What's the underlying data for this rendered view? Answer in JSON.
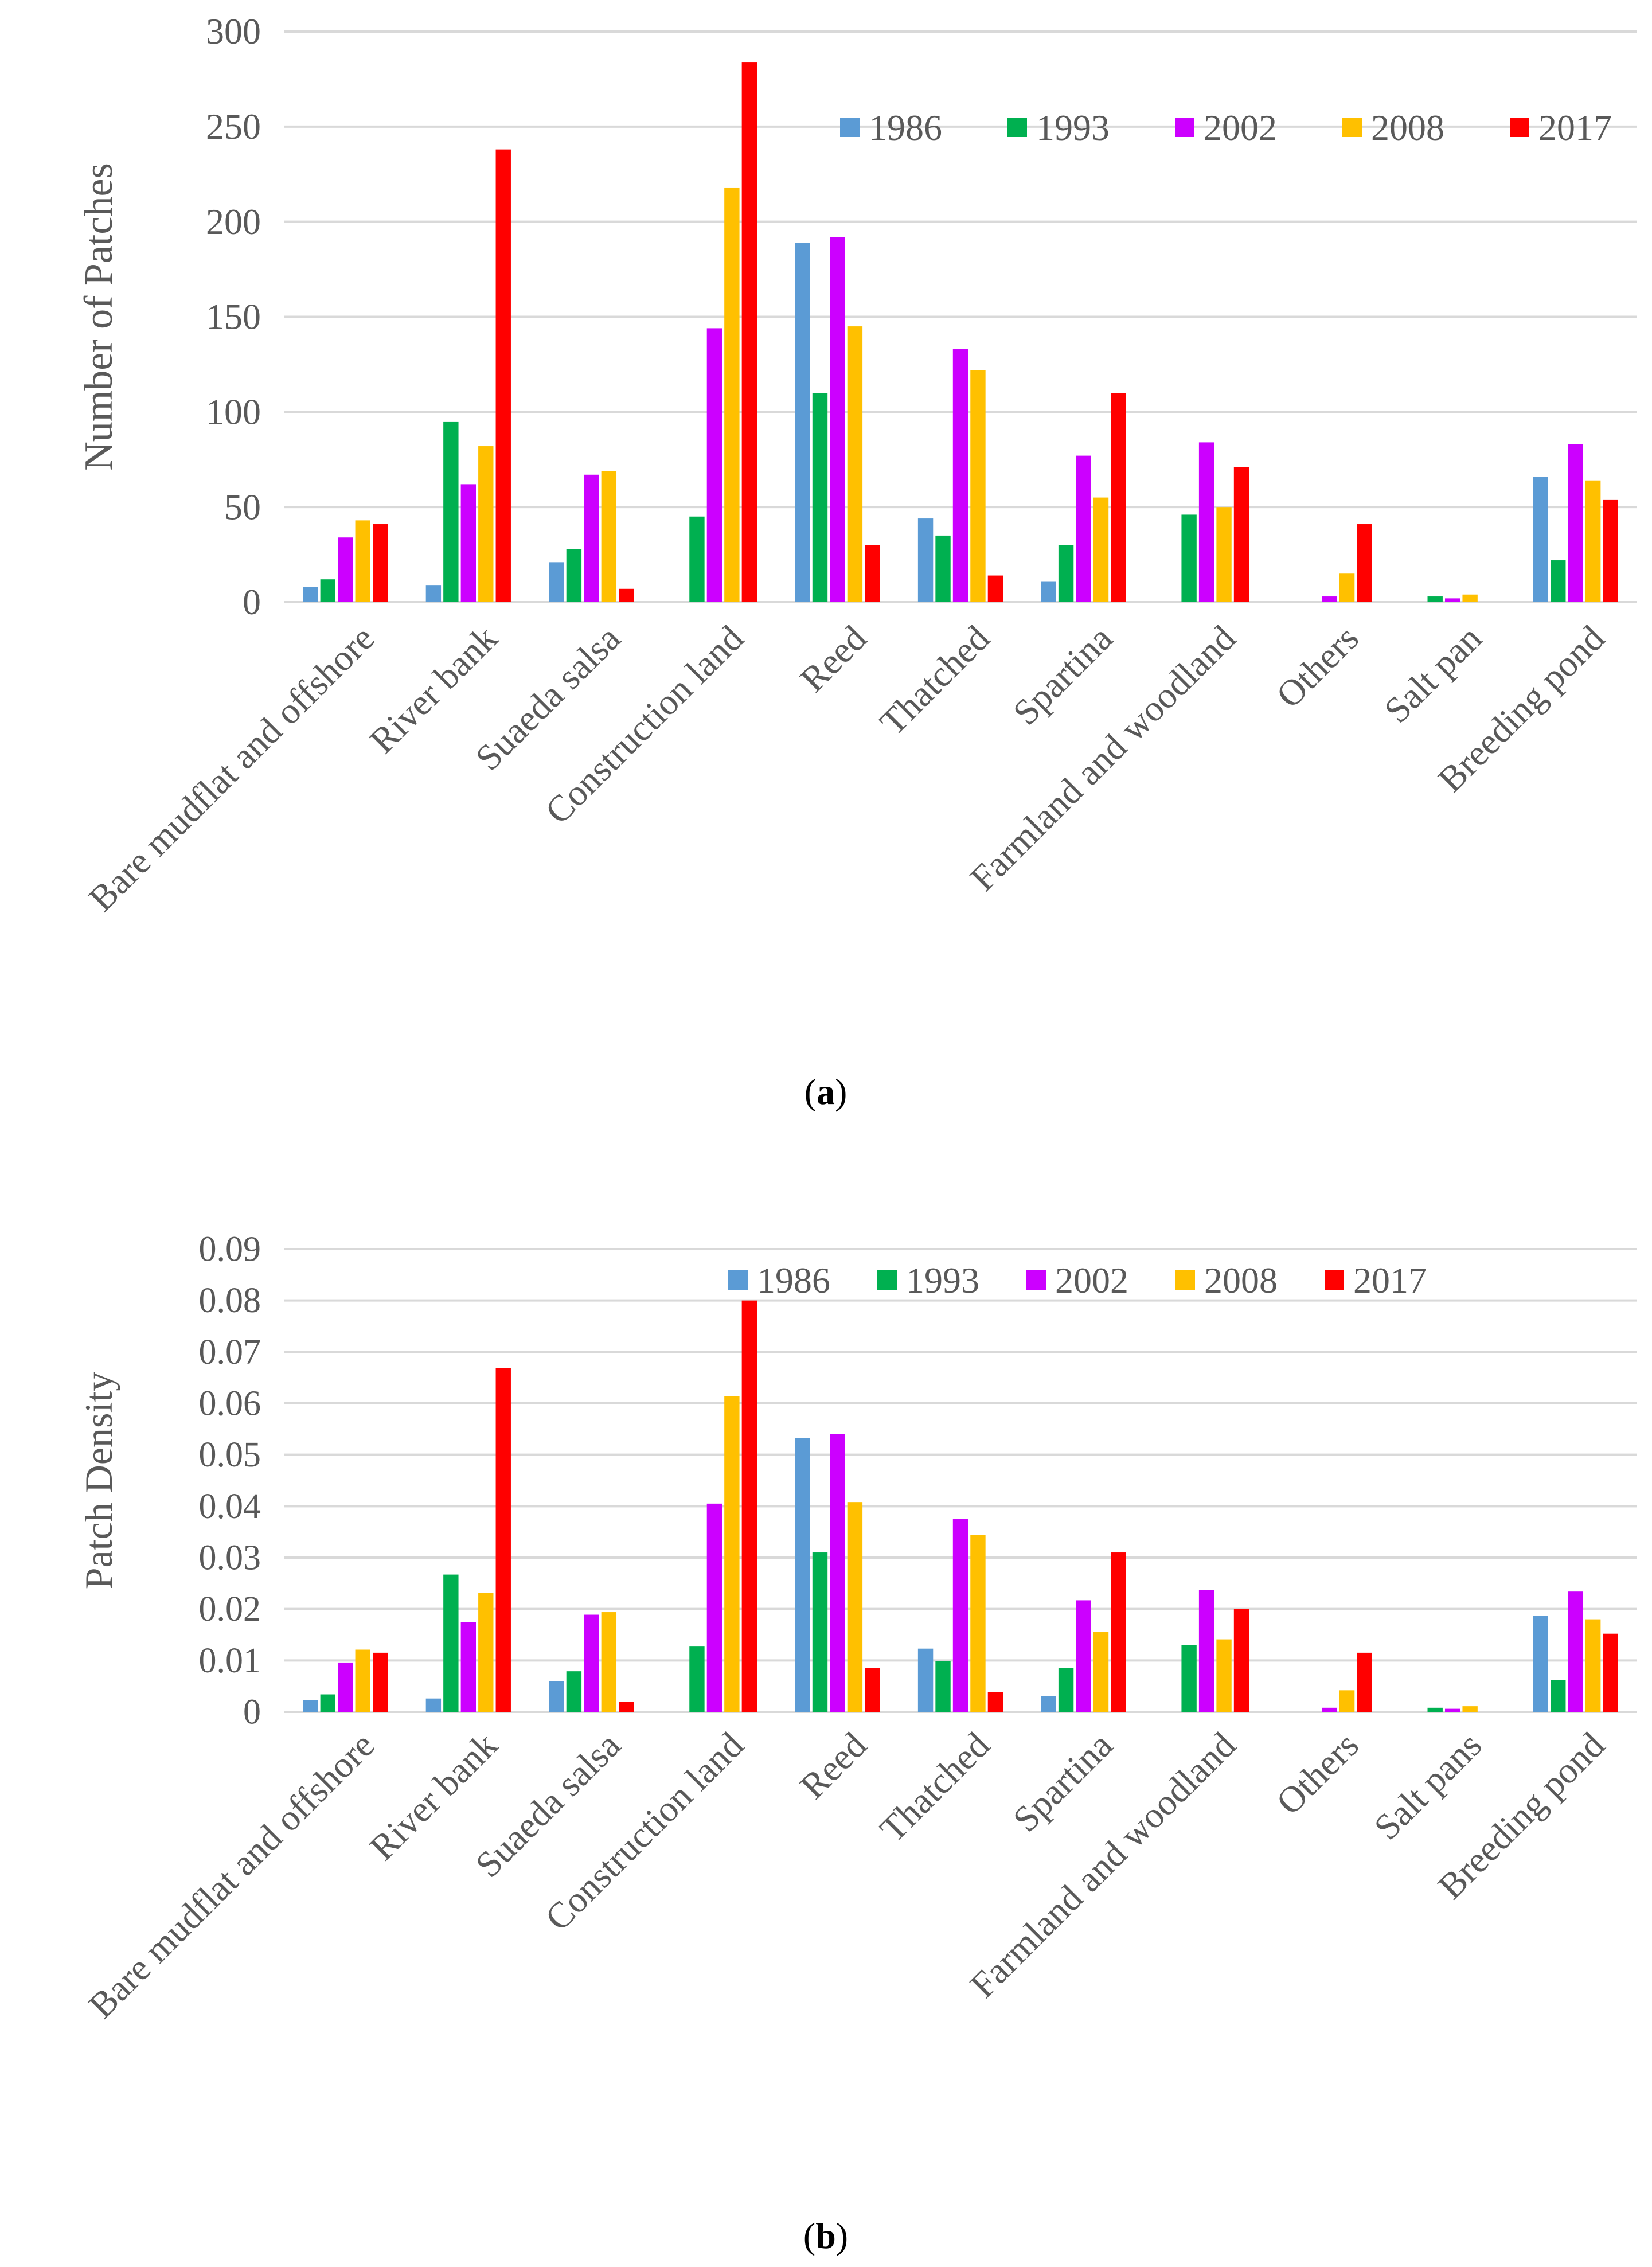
{
  "colors": {
    "series": [
      "#5B9BD5",
      "#00B050",
      "#CC00FF",
      "#FFC000",
      "#FF0000"
    ],
    "grid": "#D9D9D9",
    "axis_text": "#595959"
  },
  "chart_data": [
    {
      "type": "bar",
      "caption_label": "a",
      "title": "",
      "xlabel": "",
      "ylabel": "Number of Patches",
      "ylim": [
        0,
        300
      ],
      "yticks": [
        0,
        50,
        100,
        150,
        200,
        250,
        300
      ],
      "ytick_labels": [
        "0",
        "50",
        "100",
        "150",
        "200",
        "250",
        "300"
      ],
      "legend_position": "top-right",
      "categories": [
        "Bare mudflat and offshore",
        "River bank",
        "Suaeda salsa",
        "Construction land",
        "Reed",
        "Thatched",
        "Spartina",
        "Farmland and woodland",
        "Others",
        "Salt pan",
        "Breeding pond"
      ],
      "series": [
        {
          "name": "1986",
          "values": [
            8,
            9,
            21,
            0,
            189,
            44,
            11,
            0,
            0,
            0,
            66
          ]
        },
        {
          "name": "1993",
          "values": [
            12,
            95,
            28,
            45,
            110,
            35,
            30,
            46,
            0,
            3,
            22
          ]
        },
        {
          "name": "2002",
          "values": [
            34,
            62,
            67,
            144,
            192,
            133,
            77,
            84,
            3,
            2,
            83
          ]
        },
        {
          "name": "2008",
          "values": [
            43,
            82,
            69,
            218,
            145,
            122,
            55,
            50,
            15,
            4,
            64
          ]
        },
        {
          "name": "2017",
          "values": [
            41,
            238,
            7,
            284,
            30,
            14,
            110,
            71,
            41,
            0,
            54
          ]
        }
      ]
    },
    {
      "type": "bar",
      "caption_label": "b",
      "title": "",
      "xlabel": "",
      "ylabel": "Patch Density",
      "ylim": [
        0,
        0.09
      ],
      "yticks": [
        0,
        0.01,
        0.02,
        0.03,
        0.04,
        0.05,
        0.06,
        0.07,
        0.08,
        0.09
      ],
      "ytick_labels": [
        "0",
        "0.01",
        "0.02",
        "0.03",
        "0.04",
        "0.05",
        "0.06",
        "0.07",
        "0.08",
        "0.09"
      ],
      "legend_position": "top-center",
      "categories": [
        "Bare mudflat and offshore",
        "River bank",
        "Suaeda salsa",
        "Construction land",
        "Reed",
        "Thatched",
        "Spartina",
        "Farmland and woodland",
        "Others",
        "Salt pans",
        "Breeding pond"
      ],
      "series": [
        {
          "name": "1986",
          "values": [
            0.0023,
            0.0026,
            0.006,
            0,
            0.0532,
            0.0123,
            0.0031,
            0,
            0,
            0,
            0.0187
          ]
        },
        {
          "name": "1993",
          "values": [
            0.0034,
            0.0267,
            0.0079,
            0.0127,
            0.031,
            0.0099,
            0.0085,
            0.013,
            0,
            0.0008,
            0.0062
          ]
        },
        {
          "name": "2002",
          "values": [
            0.0096,
            0.0175,
            0.0189,
            0.0405,
            0.054,
            0.0375,
            0.0217,
            0.0237,
            0.0008,
            0.0006,
            0.0234
          ]
        },
        {
          "name": "2008",
          "values": [
            0.0121,
            0.0231,
            0.0194,
            0.0614,
            0.0408,
            0.0344,
            0.0155,
            0.0141,
            0.0042,
            0.0011,
            0.018
          ]
        },
        {
          "name": "2017",
          "values": [
            0.0115,
            0.0669,
            0.002,
            0.08,
            0.0085,
            0.0039,
            0.031,
            0.02,
            0.0115,
            0,
            0.0152
          ]
        }
      ]
    }
  ]
}
